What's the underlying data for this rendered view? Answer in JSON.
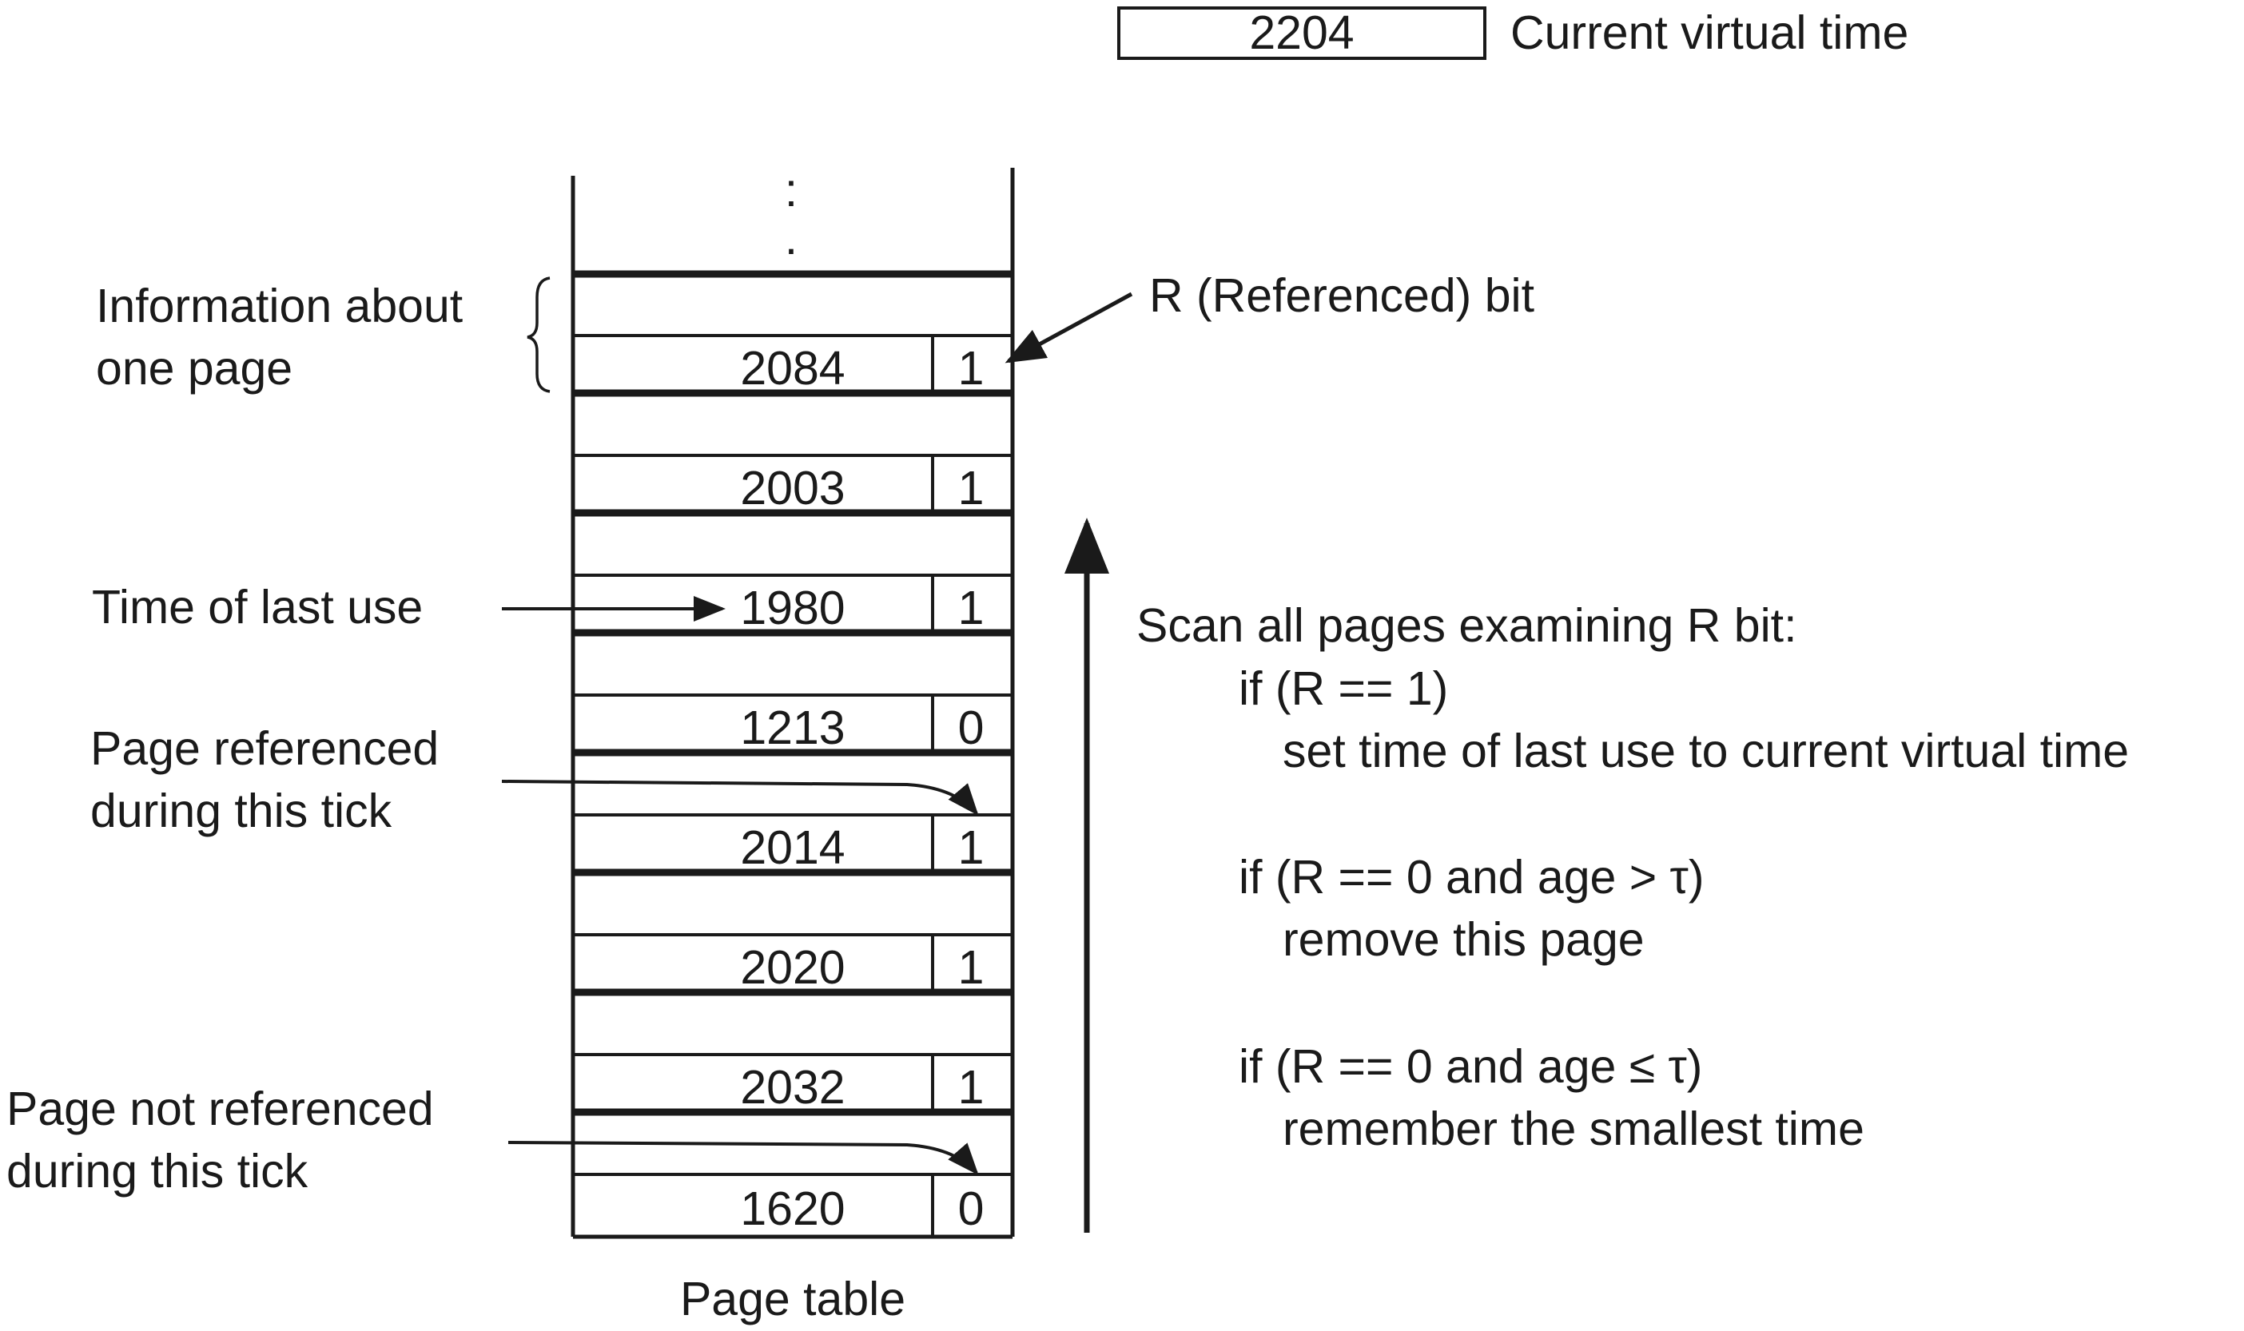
{
  "current_time": {
    "value": "2204",
    "label": "Current virtual time"
  },
  "table_caption": "Page table",
  "ellipsis": [
    ":",
    "."
  ],
  "pages": [
    {
      "time": "2084",
      "r": "1"
    },
    {
      "time": "2003",
      "r": "1"
    },
    {
      "time": "1980",
      "r": "1"
    },
    {
      "time": "1213",
      "r": "0"
    },
    {
      "time": "2014",
      "r": "1"
    },
    {
      "time": "2020",
      "r": "1"
    },
    {
      "time": "2032",
      "r": "1"
    },
    {
      "time": "1620",
      "r": "0"
    }
  ],
  "labels": {
    "info_line1": "Information about",
    "info_line2": "one page",
    "r_bit": "R (Referenced) bit",
    "time_last_use": "Time of last use",
    "referenced_line1": "Page referenced",
    "referenced_line2": "during this tick",
    "not_referenced_line1": "Page not referenced",
    "not_referenced_line2": "during this tick"
  },
  "algorithm": [
    "Scan all pages examining R bit:",
    "if (R == 1)",
    "set time of last use to current virtual time",
    "if (R == 0 and age > τ)",
    "remove this page",
    "if (R == 0 and age ≤ τ)",
    "remember the smallest time"
  ]
}
